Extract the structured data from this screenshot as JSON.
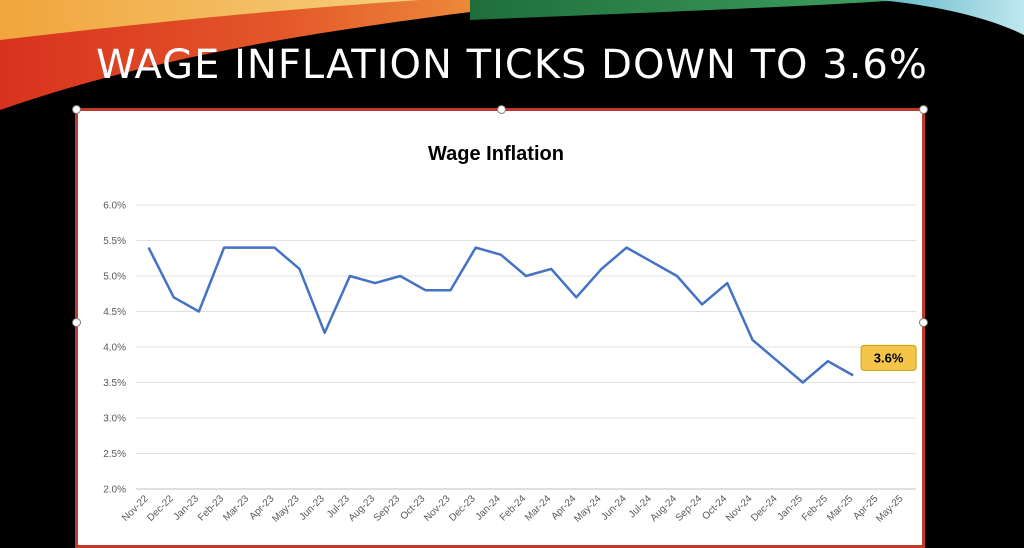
{
  "slide": {
    "title": "WAGE INFLATION TICKS DOWN TO 3.6%"
  },
  "colors": {
    "line": "#4472c4",
    "frame": "#c0392b",
    "callout_fill": "#f3c64a",
    "callout_border": "#c9a000"
  },
  "chart_data": {
    "type": "line",
    "title": "Wage Inflation",
    "xlabel": "",
    "ylabel": "",
    "ylim": [
      0.02,
      0.06
    ],
    "y_ticks": [
      "2.0%",
      "2.5%",
      "3.0%",
      "3.5%",
      "4.0%",
      "4.5%",
      "5.0%",
      "5.5%",
      "6.0%"
    ],
    "grid": true,
    "categories": [
      "Nov-22",
      "Dec-22",
      "Jan-23",
      "Feb-23",
      "Mar-23",
      "Apr-23",
      "May-23",
      "Jun-23",
      "Jul-23",
      "Aug-23",
      "Sep-23",
      "Oct-23",
      "Nov-23",
      "Dec-23",
      "Jan-24",
      "Feb-24",
      "Mar-24",
      "Apr-24",
      "May-24",
      "Jun-24",
      "Jul-24",
      "Aug-24",
      "Sep-24",
      "Oct-24",
      "Nov-24",
      "Dec-24",
      "Jan-25",
      "Feb-25",
      "Mar-25",
      "Apr-25",
      "May-25"
    ],
    "series": [
      {
        "values": [
          0.054,
          0.047,
          0.045,
          0.054,
          0.054,
          0.054,
          0.051,
          0.042,
          0.05,
          0.049,
          0.05,
          0.048,
          0.048,
          0.054,
          0.053,
          0.05,
          0.051,
          0.047,
          0.051,
          0.054,
          0.052,
          0.05,
          0.046,
          0.049,
          0.041,
          0.038,
          0.035,
          0.038,
          0.036,
          null,
          null
        ]
      }
    ],
    "annotation": {
      "text": "3.6%",
      "category": "Mar-25",
      "value": 0.036
    }
  }
}
